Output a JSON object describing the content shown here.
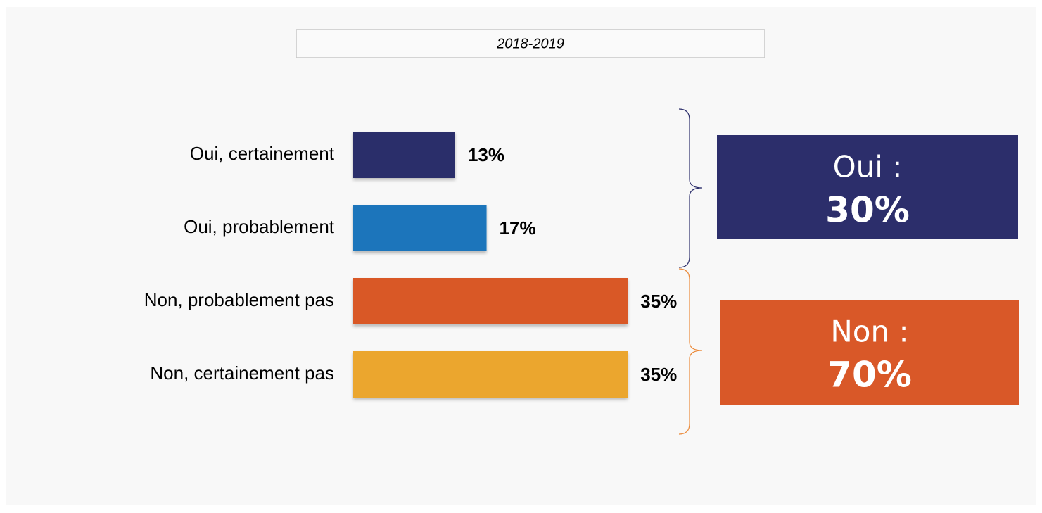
{
  "chart_data": {
    "type": "bar",
    "orientation": "horizontal",
    "title": "2018-2019",
    "categories": [
      "Oui, certainement",
      "Oui, probablement",
      "Non, probablement pas",
      "Non, certainement pas"
    ],
    "values": [
      13,
      17,
      35,
      35
    ],
    "value_labels": [
      "13%",
      "17%",
      "35%",
      "35%"
    ],
    "colors": [
      "#2c2e6b",
      "#1f74bb",
      "#d95828",
      "#eba62d"
    ],
    "groups": [
      {
        "label": "Oui :",
        "value": 30,
        "value_label": "30%",
        "color": "#2c2e6b"
      },
      {
        "label": "Non :",
        "value": 70,
        "value_label": "70%",
        "color": "#d95828"
      }
    ]
  }
}
